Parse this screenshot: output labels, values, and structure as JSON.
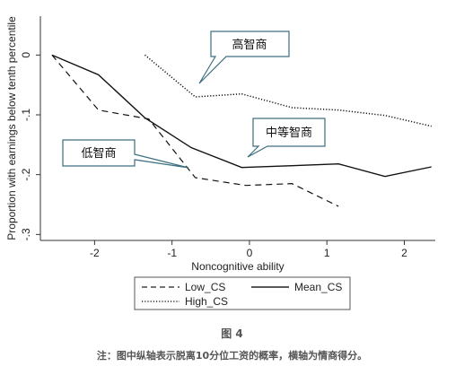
{
  "chart_data": {
    "type": "line",
    "title": "",
    "xlabel": "Noncognitive ability",
    "ylabel": "Proportion with earnings below tenth percentile",
    "xlim": [
      -2.7,
      2.4
    ],
    "ylim": [
      -0.31,
      0.065
    ],
    "x_ticks": [
      -2,
      -1,
      0,
      1,
      2
    ],
    "x_tick_labels": [
      "-2",
      "-1",
      "0",
      "1",
      "2"
    ],
    "y_ticks": [
      0,
      -0.1,
      -0.2,
      -0.3
    ],
    "y_tick_labels": [
      "0",
      "-.1",
      "-.2",
      "-.3"
    ],
    "grid": false,
    "legend_position": "bottom",
    "series": [
      {
        "name": "Low_CS",
        "style": "dashed",
        "x": [
          -2.55,
          -1.95,
          -1.3,
          -0.7,
          -0.05,
          0.55,
          1.15
        ],
        "y": [
          0,
          -0.092,
          -0.107,
          -0.205,
          -0.218,
          -0.215,
          -0.253
        ]
      },
      {
        "name": "Mean_CS",
        "style": "solid",
        "x": [
          -2.55,
          -1.95,
          -1.35,
          -0.75,
          -0.1,
          0.55,
          1.15,
          1.75,
          2.35
        ],
        "y": [
          0,
          -0.033,
          -0.105,
          -0.155,
          -0.188,
          -0.185,
          -0.182,
          -0.203,
          -0.187
        ]
      },
      {
        "name": "High_CS",
        "style": "dotted",
        "x": [
          -1.35,
          -0.7,
          -0.1,
          0.55,
          1.15,
          1.75,
          2.35
        ],
        "y": [
          0,
          -0.07,
          -0.065,
          -0.088,
          -0.092,
          -0.101,
          -0.119
        ]
      }
    ],
    "annotations": [
      {
        "id": "high",
        "text": "高智商"
      },
      {
        "id": "mid",
        "text": "中等智商"
      },
      {
        "id": "low",
        "text": "低智商"
      }
    ]
  },
  "caption": {
    "figure_label": "图 4",
    "note": "注：图中纵轴表示脱离10分位工资的概率，横轴为情商得分。"
  }
}
